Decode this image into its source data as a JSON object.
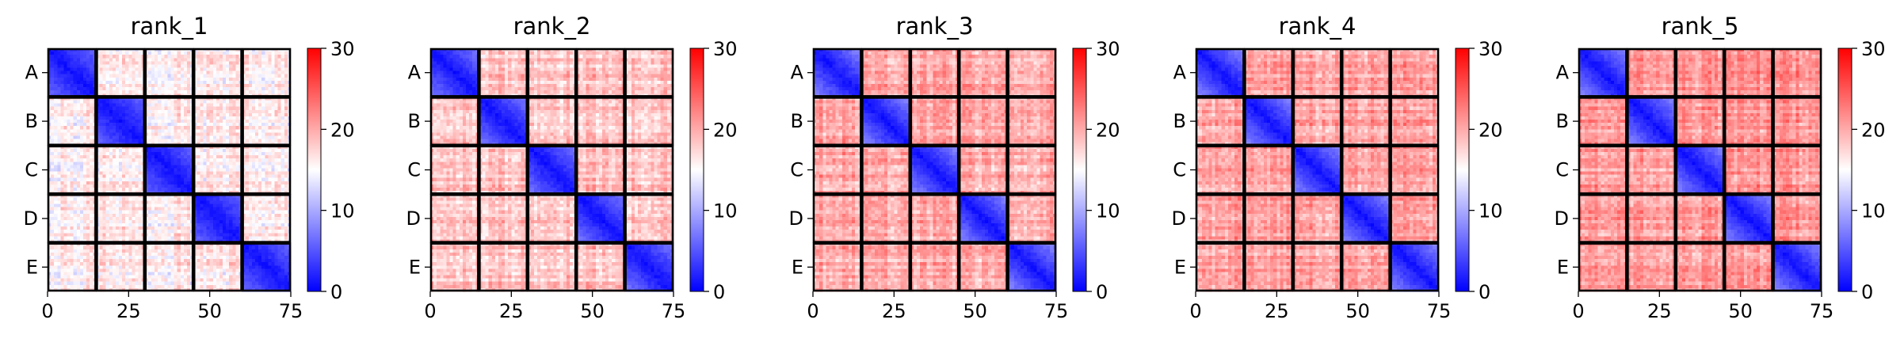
{
  "figure": {
    "panel_titles": [
      "rank_1",
      "rank_2",
      "rank_3",
      "rank_4",
      "rank_5"
    ]
  },
  "chart_data": [
    {
      "type": "heatmap",
      "title": "rank_1",
      "matrix_size": 75,
      "block_size": 15,
      "row_labels": [
        "A",
        "B",
        "C",
        "D",
        "E"
      ],
      "x_ticks": [
        0,
        25,
        50,
        75
      ],
      "xlim": [
        0,
        75
      ],
      "colorbar": {
        "ticks": [
          0,
          10,
          20,
          30
        ],
        "range": [
          0,
          30
        ],
        "colormap": "bwr"
      },
      "colors": {
        "low": "#0000ff",
        "mid": "#ffffff",
        "high": "#ff0000",
        "block_border": "#000000"
      },
      "diagonal_value_range": [
        1,
        6
      ],
      "off_diagonal_mean": 16
    },
    {
      "type": "heatmap",
      "title": "rank_2",
      "matrix_size": 75,
      "block_size": 15,
      "row_labels": [
        "A",
        "B",
        "C",
        "D",
        "E"
      ],
      "x_ticks": [
        0,
        25,
        50,
        75
      ],
      "xlim": [
        0,
        75
      ],
      "colorbar": {
        "ticks": [
          0,
          10,
          20,
          30
        ],
        "range": [
          0,
          30
        ],
        "colormap": "bwr"
      },
      "colors": {
        "low": "#0000ff",
        "mid": "#ffffff",
        "high": "#ff0000",
        "block_border": "#000000"
      },
      "diagonal_value_range": [
        1,
        7
      ],
      "off_diagonal_mean": 18.5
    },
    {
      "type": "heatmap",
      "title": "rank_3",
      "matrix_size": 75,
      "block_size": 15,
      "row_labels": [
        "A",
        "B",
        "C",
        "D",
        "E"
      ],
      "x_ticks": [
        0,
        25,
        50,
        75
      ],
      "xlim": [
        0,
        75
      ],
      "colorbar": {
        "ticks": [
          0,
          10,
          20,
          30
        ],
        "range": [
          0,
          30
        ],
        "colormap": "bwr"
      },
      "colors": {
        "low": "#0000ff",
        "mid": "#ffffff",
        "high": "#ff0000",
        "block_border": "#000000"
      },
      "diagonal_value_range": [
        1,
        8
      ],
      "off_diagonal_mean": 20
    },
    {
      "type": "heatmap",
      "title": "rank_4",
      "matrix_size": 75,
      "block_size": 15,
      "row_labels": [
        "A",
        "B",
        "C",
        "D",
        "E"
      ],
      "x_ticks": [
        0,
        25,
        50,
        75
      ],
      "xlim": [
        0,
        75
      ],
      "colorbar": {
        "ticks": [
          0,
          10,
          20,
          30
        ],
        "range": [
          0,
          30
        ],
        "colormap": "bwr"
      },
      "colors": {
        "low": "#0000ff",
        "mid": "#ffffff",
        "high": "#ff0000",
        "block_border": "#000000"
      },
      "diagonal_value_range": [
        1,
        8
      ],
      "off_diagonal_mean": 20.5
    },
    {
      "type": "heatmap",
      "title": "rank_5",
      "matrix_size": 75,
      "block_size": 15,
      "row_labels": [
        "A",
        "B",
        "C",
        "D",
        "E"
      ],
      "x_ticks": [
        0,
        25,
        50,
        75
      ],
      "xlim": [
        0,
        75
      ],
      "colorbar": {
        "ticks": [
          0,
          10,
          20,
          30
        ],
        "range": [
          0,
          30
        ],
        "colormap": "bwr"
      },
      "colors": {
        "low": "#0000ff",
        "mid": "#ffffff",
        "high": "#ff0000",
        "block_border": "#000000"
      },
      "diagonal_value_range": [
        1,
        8
      ],
      "off_diagonal_mean": 21
    }
  ]
}
